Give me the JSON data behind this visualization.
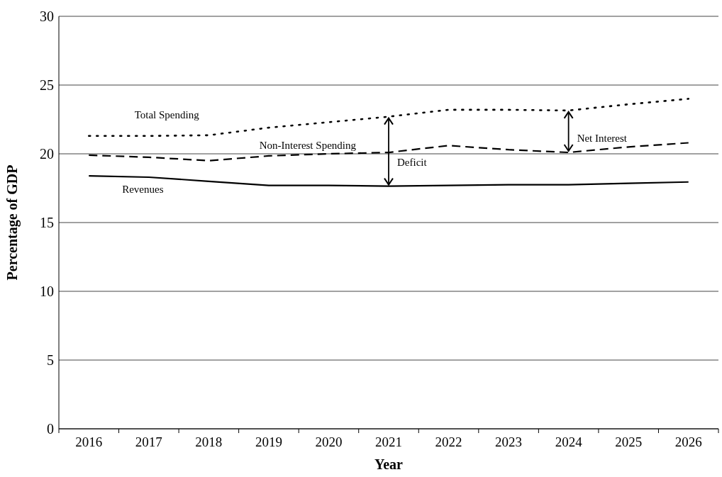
{
  "chart_data": {
    "type": "line",
    "xlabel": "Year",
    "ylabel": "Percentage of GDP",
    "categories": [
      "2016",
      "2017",
      "2018",
      "2019",
      "2020",
      "2021",
      "2022",
      "2023",
      "2024",
      "2025",
      "2026"
    ],
    "series": [
      {
        "name": "Total Spending",
        "color": "#000000",
        "line_style": "dotted",
        "values": [
          21.3,
          21.3,
          21.35,
          21.9,
          22.3,
          22.7,
          23.2,
          23.2,
          23.15,
          23.6,
          24.0
        ]
      },
      {
        "name": "Non-Interest Spending",
        "color": "#000000",
        "line_style": "dashed",
        "values": [
          19.9,
          19.75,
          19.5,
          19.85,
          20.0,
          20.1,
          20.6,
          20.3,
          20.1,
          20.5,
          20.8
        ]
      },
      {
        "name": "Revenues",
        "color": "#000000",
        "line_style": "solid",
        "values": [
          18.4,
          18.3,
          18.0,
          17.7,
          17.7,
          17.65,
          17.7,
          17.75,
          17.75,
          17.85,
          17.95
        ]
      }
    ],
    "ylim": [
      0,
      30
    ],
    "yticks": [
      0,
      5,
      10,
      15,
      20,
      25,
      30
    ],
    "grid": "y",
    "legend": false,
    "marker": "none",
    "annotations": [
      {
        "text": "Deficit",
        "x": "2021",
        "y": 17.65
      },
      {
        "text": "Net Interest",
        "x": "2024",
        "y": 20.1
      }
    ]
  }
}
